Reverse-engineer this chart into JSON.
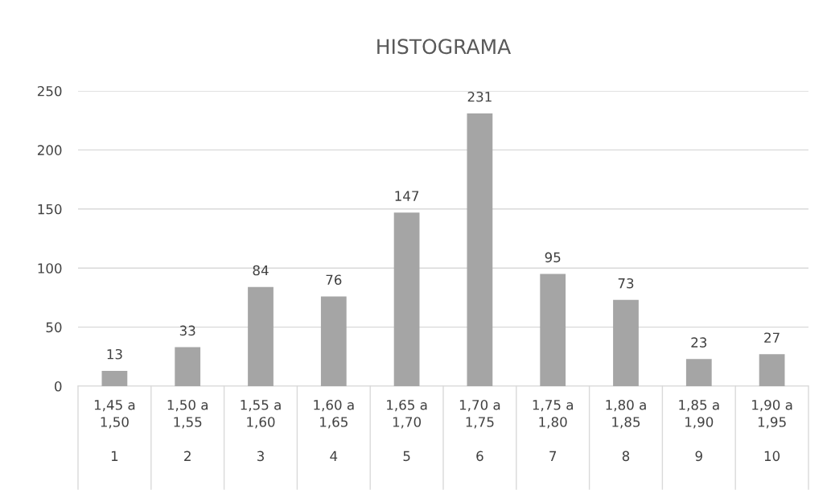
{
  "chart_data": {
    "type": "bar",
    "title": "HISTOGRAMA",
    "categories": [
      "1,45 a\n1,50\n\n1",
      "1,50 a\n1,55\n\n2",
      "1,55 a\n1,60\n\n3",
      "1,60 a\n1,65\n\n4",
      "1,65 a\n1,70\n\n5",
      "1,70 a\n1,75\n\n6",
      "1,75 a\n1,80\n\n7",
      "1,80 a\n1,85\n\n8",
      "1,85 a\n1,90\n\n9",
      "1,90 a\n1,95\n\n10"
    ],
    "values": [
      13,
      33,
      84,
      76,
      147,
      231,
      95,
      73,
      23,
      27
    ],
    "color": "#a5a5a5",
    "ylim": [
      0,
      250
    ],
    "yticks": [
      0,
      50,
      100,
      150,
      200,
      250
    ],
    "grid": "y",
    "data_labels": true
  }
}
